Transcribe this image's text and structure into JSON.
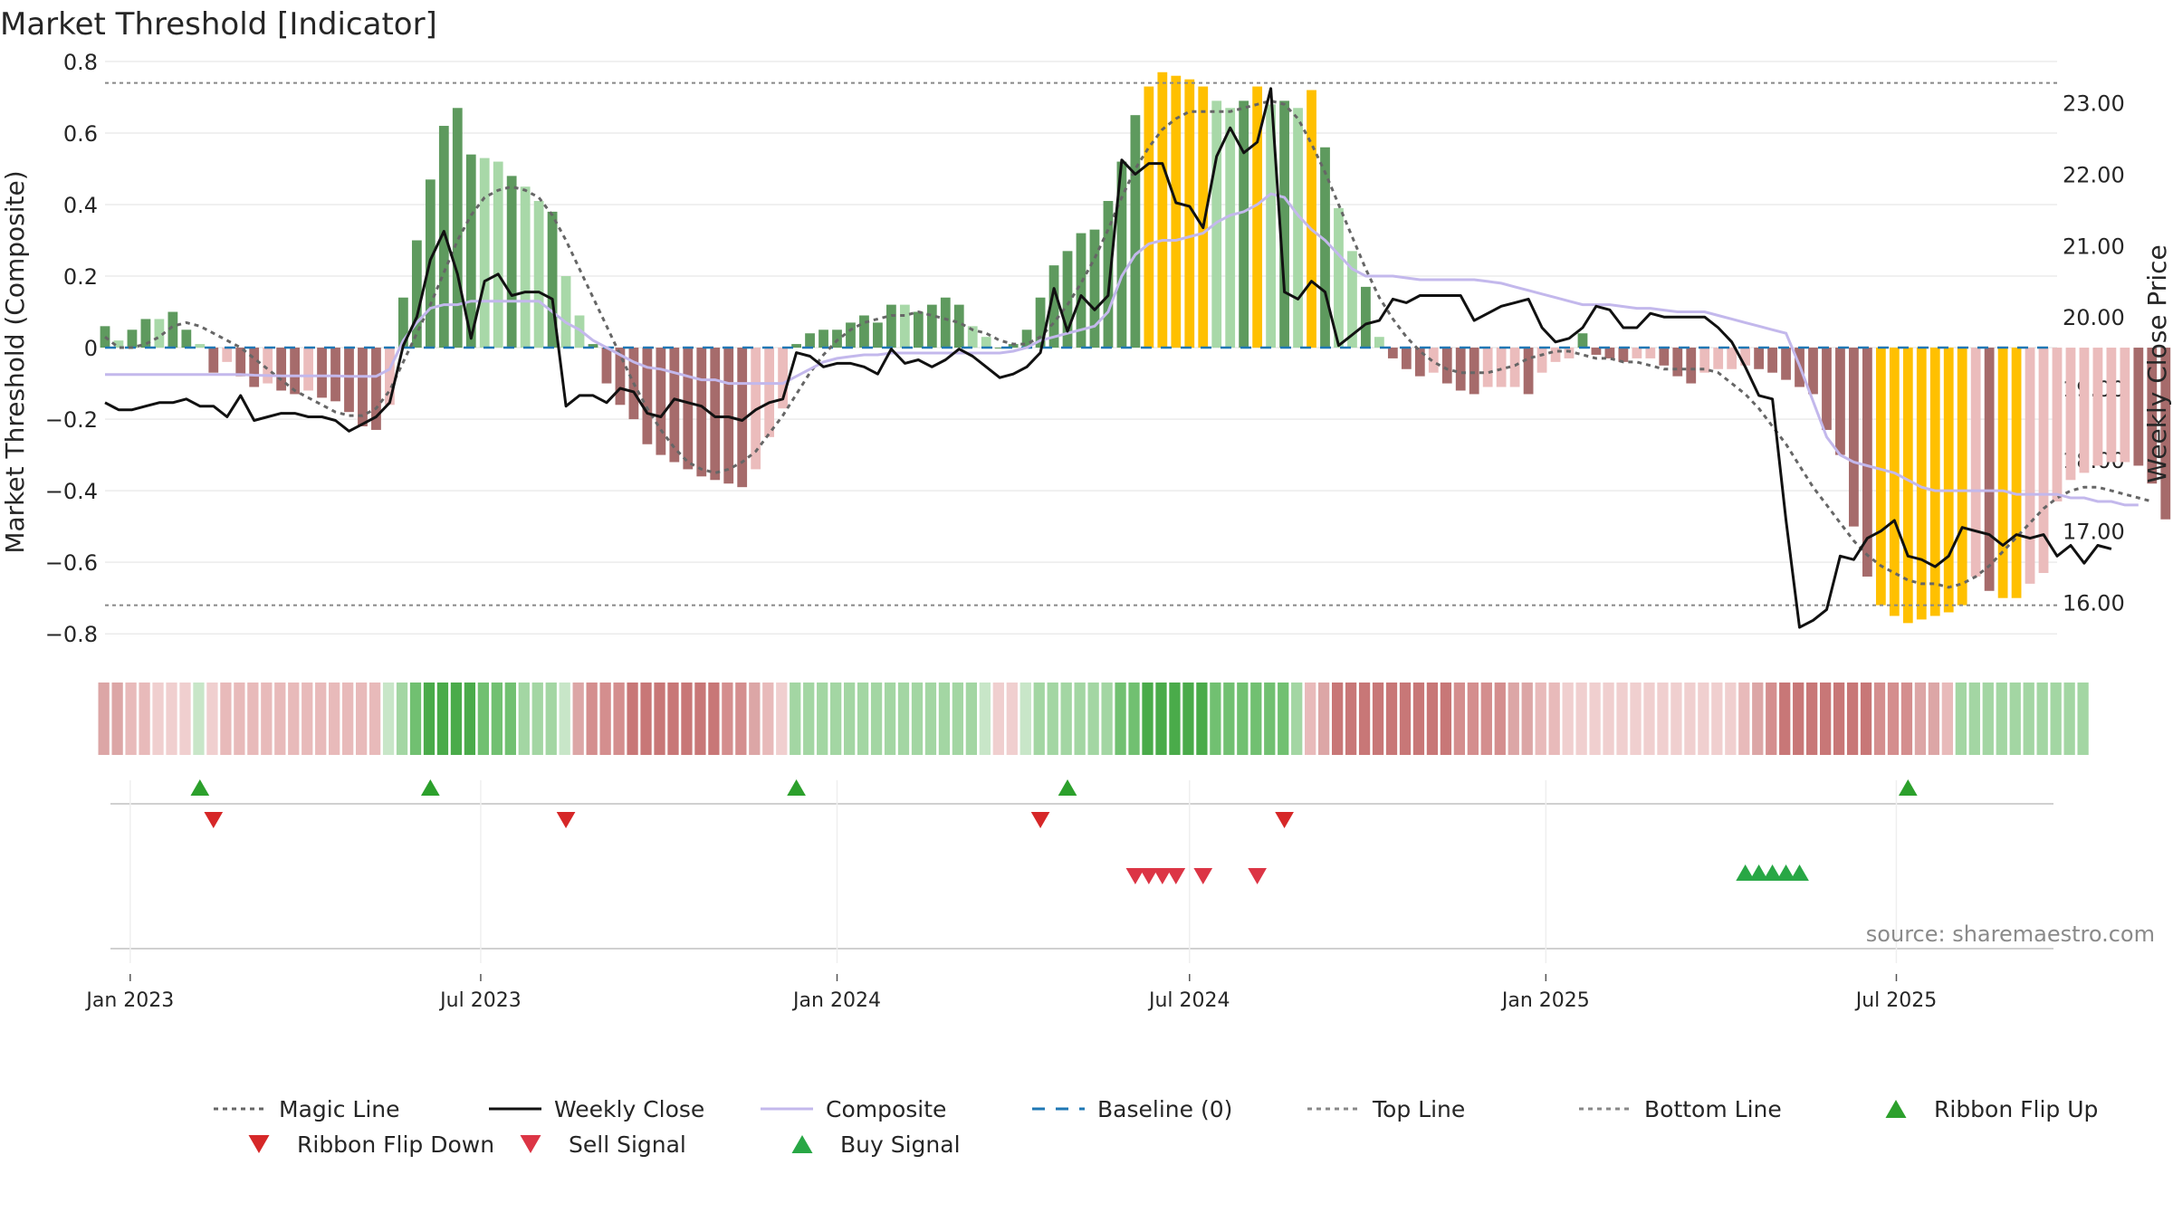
{
  "chart_data": {
    "type": "bar",
    "title": "Market Threshold [Indicator]",
    "ylabel_left": "Market Threshold (Composite)",
    "ylabel_right": "Weekly Close Price",
    "source": "source: sharemaestro.com",
    "ylim_left": [
      -0.84,
      0.82
    ],
    "ylim_right": [
      15.36,
      23.68
    ],
    "yticks_left": [
      0.8,
      0.6,
      0.4,
      0.2,
      0,
      -0.2,
      -0.4,
      -0.6,
      -0.8
    ],
    "yticks_left_labels": [
      "0.8",
      "0.6",
      "0.4",
      "0.2",
      "0",
      "−0.2",
      "−0.4",
      "−0.6",
      "−0.8"
    ],
    "yticks_right": [
      23,
      22,
      21,
      20,
      19,
      18,
      17,
      16
    ],
    "yticks_right_labels": [
      "23.00",
      "22.00",
      "21.00",
      "20.00",
      "19.00",
      "18.00",
      "17.00",
      "16.00"
    ],
    "x_range": [
      "2022-12-19",
      "2025-09-22"
    ],
    "x_ticks": [
      "2023-01-01",
      "2023-07-01",
      "2024-01-01",
      "2024-07-01",
      "2025-01-01",
      "2025-07-01"
    ],
    "x_tick_labels": [
      "Jan 2023",
      "Jul 2023",
      "Jan 2024",
      "Jul 2024",
      "Jan 2025",
      "Jul 2025"
    ],
    "top_line": 0.74,
    "bottom_line": -0.72,
    "baseline": 0,
    "colors": {
      "pos_dark": "#5e9a5e",
      "pos_light": "#a8d8a8",
      "neg_dark": "#a66b6b",
      "neg_light": "#ebbcbc",
      "extreme": "#ffc000",
      "weekly_close": "#111111",
      "composite": "#c3b8ec",
      "magic_line": "#666666",
      "baseline": "#1f77b4",
      "threshold_lines": "#888888",
      "buy": "#2ca02c",
      "sell": "#d62728"
    },
    "composite_bars": {
      "start": "2022-12-19",
      "interval_days": 7,
      "values": [
        0.06,
        0.02,
        0.05,
        0.08,
        0.08,
        0.1,
        0.05,
        0.01,
        -0.07,
        -0.04,
        -0.08,
        -0.11,
        -0.1,
        -0.12,
        -0.13,
        -0.12,
        -0.14,
        -0.15,
        -0.18,
        -0.22,
        -0.23,
        -0.16,
        0.14,
        0.3,
        0.47,
        0.62,
        0.67,
        0.54,
        0.53,
        0.52,
        0.48,
        0.45,
        0.41,
        0.38,
        0.2,
        0.09,
        0.01,
        -0.1,
        -0.16,
        -0.2,
        -0.27,
        -0.3,
        -0.32,
        -0.34,
        -0.36,
        -0.37,
        -0.38,
        -0.39,
        -0.34,
        -0.25,
        -0.17,
        0.01,
        0.04,
        0.05,
        0.05,
        0.07,
        0.09,
        0.07,
        0.12,
        0.12,
        0.1,
        0.12,
        0.14,
        0.12,
        0.06,
        0.03,
        0.0,
        0.01,
        0.05,
        0.14,
        0.23,
        0.27,
        0.32,
        0.33,
        0.41,
        0.52,
        0.65,
        0.73,
        0.77,
        0.76,
        0.75,
        0.73,
        0.69,
        0.67,
        0.69,
        0.73,
        0.68,
        0.69,
        0.67,
        0.72,
        0.56,
        0.39,
        0.27,
        0.17,
        0.03,
        -0.03,
        -0.06,
        -0.08,
        -0.07,
        -0.1,
        -0.12,
        -0.13,
        -0.11,
        -0.11,
        -0.11,
        -0.13,
        -0.07,
        -0.04,
        -0.03,
        0.04,
        -0.02,
        -0.03,
        -0.04,
        -0.03,
        -0.03,
        -0.05,
        -0.08,
        -0.1,
        -0.07,
        -0.06,
        -0.06,
        -0.05,
        -0.06,
        -0.07,
        -0.09,
        -0.11,
        -0.13,
        -0.23,
        -0.3,
        -0.5,
        -0.64,
        -0.72,
        -0.75,
        -0.77,
        -0.76,
        -0.75,
        -0.74,
        -0.72,
        -0.64,
        -0.68,
        -0.7,
        -0.7,
        -0.66,
        -0.63,
        -0.43,
        -0.37,
        -0.35,
        -0.33,
        -0.32,
        -0.32,
        -0.33,
        -0.38,
        -0.48,
        -0.45,
        -0.44,
        -0.46
      ]
    },
    "weekly_close": {
      "start": "2022-12-19",
      "interval_days": 7,
      "values": [
        18.8,
        18.7,
        18.7,
        18.75,
        18.8,
        18.8,
        18.85,
        18.75,
        18.75,
        18.6,
        18.9,
        18.55,
        18.6,
        18.65,
        18.65,
        18.6,
        18.6,
        18.55,
        18.4,
        18.5,
        18.6,
        18.8,
        19.6,
        20.0,
        20.8,
        21.2,
        20.6,
        19.7,
        20.5,
        20.6,
        20.3,
        20.35,
        20.35,
        20.25,
        18.75,
        18.9,
        18.9,
        18.8,
        19.0,
        18.95,
        18.65,
        18.6,
        18.85,
        18.8,
        18.75,
        18.6,
        18.6,
        18.55,
        18.7,
        18.8,
        18.85,
        19.5,
        19.45,
        19.3,
        19.35,
        19.35,
        19.3,
        19.2,
        19.55,
        19.35,
        19.4,
        19.3,
        19.4,
        19.55,
        19.45,
        19.3,
        19.15,
        19.2,
        19.3,
        19.5,
        20.4,
        19.8,
        20.3,
        20.1,
        20.3,
        22.2,
        22.0,
        22.15,
        22.15,
        21.6,
        21.55,
        21.25,
        22.25,
        22.65,
        22.3,
        22.45,
        23.2,
        20.35,
        20.25,
        20.5,
        20.35,
        19.6,
        19.75,
        19.9,
        19.95,
        20.25,
        20.2,
        20.3,
        20.3,
        20.3,
        20.3,
        19.95,
        20.05,
        20.15,
        20.2,
        20.25,
        19.85,
        19.65,
        19.7,
        19.85,
        20.15,
        20.1,
        19.85,
        19.85,
        20.05,
        20.0,
        20.0,
        20.0,
        20.0,
        19.85,
        19.65,
        19.3,
        18.9,
        18.85,
        17.15,
        15.65,
        15.75,
        15.9,
        16.65,
        16.6,
        16.9,
        17.0,
        17.15,
        16.65,
        16.6,
        16.5,
        16.65,
        17.05,
        17.0,
        16.95,
        16.8,
        16.95,
        16.9,
        16.95,
        16.65,
        16.8,
        16.55,
        16.8,
        16.75
      ]
    },
    "composite_line": {
      "start": "2022-12-19",
      "interval_days": 7,
      "values": [
        -0.075,
        -0.075,
        -0.075,
        -0.075,
        -0.075,
        -0.075,
        -0.075,
        -0.075,
        -0.075,
        -0.075,
        -0.075,
        -0.077,
        -0.078,
        -0.079,
        -0.079,
        -0.079,
        -0.079,
        -0.079,
        -0.08,
        -0.08,
        -0.08,
        -0.06,
        0.02,
        0.07,
        0.11,
        0.12,
        0.12,
        0.13,
        0.13,
        0.13,
        0.13,
        0.13,
        0.13,
        0.1,
        0.07,
        0.05,
        0.02,
        0.0,
        -0.02,
        -0.04,
        -0.055,
        -0.06,
        -0.07,
        -0.08,
        -0.09,
        -0.09,
        -0.1,
        -0.1,
        -0.1,
        -0.1,
        -0.1,
        -0.08,
        -0.06,
        -0.04,
        -0.03,
        -0.025,
        -0.02,
        -0.02,
        -0.015,
        -0.015,
        -0.015,
        -0.015,
        -0.015,
        -0.015,
        -0.015,
        -0.015,
        -0.015,
        -0.01,
        0.0,
        0.02,
        0.03,
        0.04,
        0.05,
        0.06,
        0.1,
        0.2,
        0.26,
        0.29,
        0.3,
        0.3,
        0.31,
        0.32,
        0.35,
        0.37,
        0.38,
        0.4,
        0.43,
        0.42,
        0.37,
        0.33,
        0.3,
        0.26,
        0.22,
        0.2,
        0.2,
        0.2,
        0.195,
        0.19,
        0.19,
        0.19,
        0.19,
        0.19,
        0.185,
        0.18,
        0.17,
        0.16,
        0.15,
        0.14,
        0.13,
        0.12,
        0.12,
        0.12,
        0.115,
        0.11,
        0.11,
        0.105,
        0.1,
        0.1,
        0.1,
        0.09,
        0.08,
        0.07,
        0.06,
        0.05,
        0.04,
        -0.05,
        -0.15,
        -0.25,
        -0.3,
        -0.32,
        -0.33,
        -0.34,
        -0.35,
        -0.37,
        -0.39,
        -0.4,
        -0.4,
        -0.4,
        -0.4,
        -0.4,
        -0.4,
        -0.41,
        -0.41,
        -0.41,
        -0.41,
        -0.42,
        -0.42,
        -0.43,
        -0.43,
        -0.44,
        -0.44
      ]
    },
    "magic_line": {
      "start": "2022-12-19",
      "interval_days": 7,
      "values": [
        0.03,
        0.0,
        0.0,
        0.01,
        0.03,
        0.06,
        0.07,
        0.06,
        0.04,
        0.02,
        0.0,
        -0.03,
        -0.06,
        -0.09,
        -0.12,
        -0.14,
        -0.16,
        -0.18,
        -0.19,
        -0.19,
        -0.17,
        -0.12,
        -0.04,
        0.04,
        0.12,
        0.21,
        0.3,
        0.37,
        0.42,
        0.44,
        0.45,
        0.44,
        0.42,
        0.37,
        0.3,
        0.22,
        0.14,
        0.06,
        -0.02,
        -0.1,
        -0.17,
        -0.23,
        -0.28,
        -0.32,
        -0.34,
        -0.35,
        -0.34,
        -0.32,
        -0.29,
        -0.24,
        -0.19,
        -0.13,
        -0.07,
        -0.02,
        0.02,
        0.05,
        0.07,
        0.08,
        0.09,
        0.09,
        0.1,
        0.09,
        0.08,
        0.07,
        0.05,
        0.04,
        0.02,
        0.01,
        0.01,
        0.03,
        0.07,
        0.12,
        0.18,
        0.25,
        0.33,
        0.42,
        0.5,
        0.56,
        0.61,
        0.64,
        0.66,
        0.66,
        0.66,
        0.66,
        0.67,
        0.68,
        0.69,
        0.68,
        0.64,
        0.57,
        0.49,
        0.4,
        0.31,
        0.22,
        0.14,
        0.08,
        0.03,
        -0.01,
        -0.04,
        -0.06,
        -0.07,
        -0.07,
        -0.07,
        -0.06,
        -0.05,
        -0.03,
        -0.02,
        -0.01,
        -0.01,
        -0.02,
        -0.03,
        -0.03,
        -0.04,
        -0.04,
        -0.05,
        -0.06,
        -0.06,
        -0.06,
        -0.06,
        -0.07,
        -0.1,
        -0.13,
        -0.17,
        -0.22,
        -0.27,
        -0.33,
        -0.39,
        -0.44,
        -0.49,
        -0.54,
        -0.58,
        -0.61,
        -0.63,
        -0.65,
        -0.66,
        -0.66,
        -0.67,
        -0.66,
        -0.64,
        -0.61,
        -0.57,
        -0.53,
        -0.49,
        -0.45,
        -0.42,
        -0.4,
        -0.39,
        -0.39,
        -0.4,
        -0.41,
        -0.42,
        -0.43
      ]
    },
    "ribbon": {
      "start": "2022-12-19",
      "interval_days": 7,
      "colors": [
        "#dca6a6",
        "#dca6a6",
        "#e8baba",
        "#e8baba",
        "#f0cfcf",
        "#f0cfcf",
        "#f0cfcf",
        "#c8e6c8",
        "#f0cfcf",
        "#e8baba",
        "#e8baba",
        "#e8baba",
        "#e8baba",
        "#e8baba",
        "#e8baba",
        "#e8baba",
        "#e8baba",
        "#e8baba",
        "#e8baba",
        "#e8baba",
        "#e8baba",
        "#c8e6c8",
        "#a3d6a3",
        "#71c071",
        "#4aab4a",
        "#4aab4a",
        "#4aab4a",
        "#4aab4a",
        "#71c071",
        "#71c071",
        "#71c071",
        "#a3d6a3",
        "#a3d6a3",
        "#a3d6a3",
        "#c8e6c8",
        "#dca6a6",
        "#d48e8e",
        "#d48e8e",
        "#d48e8e",
        "#c87777",
        "#c87777",
        "#c87777",
        "#c87777",
        "#c87777",
        "#c87777",
        "#c87777",
        "#d48e8e",
        "#d48e8e",
        "#dca6a6",
        "#e8baba",
        "#f0cfcf",
        "#a3d6a3",
        "#a3d6a3",
        "#a3d6a3",
        "#a3d6a3",
        "#a3d6a3",
        "#a3d6a3",
        "#a3d6a3",
        "#a3d6a3",
        "#a3d6a3",
        "#a3d6a3",
        "#a3d6a3",
        "#a3d6a3",
        "#a3d6a3",
        "#a3d6a3",
        "#c8e6c8",
        "#f0cfcf",
        "#f0cfcf",
        "#c8e6c8",
        "#a3d6a3",
        "#a3d6a3",
        "#a3d6a3",
        "#a3d6a3",
        "#a3d6a3",
        "#a3d6a3",
        "#71c071",
        "#71c071",
        "#4aab4a",
        "#4aab4a",
        "#4aab4a",
        "#4aab4a",
        "#4aab4a",
        "#71c071",
        "#71c071",
        "#71c071",
        "#71c071",
        "#71c071",
        "#71c071",
        "#a3d6a3",
        "#e8baba",
        "#dca6a6",
        "#c87777",
        "#c87777",
        "#c87777",
        "#c87777",
        "#c87777",
        "#c87777",
        "#c87777",
        "#c87777",
        "#c87777",
        "#d48e8e",
        "#d48e8e",
        "#d48e8e",
        "#d48e8e",
        "#dca6a6",
        "#dca6a6",
        "#e8baba",
        "#e8baba",
        "#f0cfcf",
        "#f0cfcf",
        "#f0cfcf",
        "#f0cfcf",
        "#f0cfcf",
        "#f0cfcf",
        "#f0cfcf",
        "#f0cfcf",
        "#f0cfcf",
        "#f0cfcf",
        "#f0cfcf",
        "#f0cfcf",
        "#f0cfcf",
        "#e8baba",
        "#dca6a6",
        "#d48e8e",
        "#c87777",
        "#c87777",
        "#c87777",
        "#c87777",
        "#c87777",
        "#c87777",
        "#c87777",
        "#d48e8e",
        "#d48e8e",
        "#d48e8e",
        "#dca6a6",
        "#dca6a6",
        "#e8baba",
        "#a3d6a3",
        "#a3d6a3",
        "#a3d6a3",
        "#a3d6a3",
        "#a3d6a3",
        "#a3d6a3",
        "#a3d6a3",
        "#a3d6a3",
        "#a3d6a3",
        "#a3d6a3"
      ]
    },
    "ribbon_flip_up": [
      "2023-02-06",
      "2023-06-05",
      "2023-12-11",
      "2024-04-29",
      "2025-07-07"
    ],
    "ribbon_flip_down": [
      "2023-02-13",
      "2023-08-14",
      "2024-04-15",
      "2024-08-19"
    ],
    "sell_signals": [
      "2024-06-03",
      "2024-06-10",
      "2024-06-17",
      "2024-06-24",
      "2024-07-08",
      "2024-08-05"
    ],
    "buy_signals": [
      "2025-04-14",
      "2025-04-21",
      "2025-04-28",
      "2025-05-05",
      "2025-05-12"
    ],
    "legend": [
      {
        "label": "Magic Line",
        "kind": "dotted-line",
        "color": "#666666"
      },
      {
        "label": "Weekly Close",
        "kind": "line",
        "color": "#111111"
      },
      {
        "label": "Composite",
        "kind": "line",
        "color": "#c3b8ec"
      },
      {
        "label": "Baseline (0)",
        "kind": "dashed-line",
        "color": "#1f77b4"
      },
      {
        "label": "Top Line",
        "kind": "dotted-line",
        "color": "#888888"
      },
      {
        "label": "Bottom Line",
        "kind": "dotted-line",
        "color": "#888888"
      },
      {
        "label": "Ribbon Flip Up",
        "kind": "triangle-up",
        "color": "#2ca02c"
      },
      {
        "label": "Ribbon Flip Down",
        "kind": "triangle-down",
        "color": "#d62728"
      },
      {
        "label": "Sell Signal",
        "kind": "triangle-down",
        "color": "#dc3545"
      },
      {
        "label": "Buy Signal",
        "kind": "triangle-up",
        "color": "#28a745"
      }
    ]
  }
}
